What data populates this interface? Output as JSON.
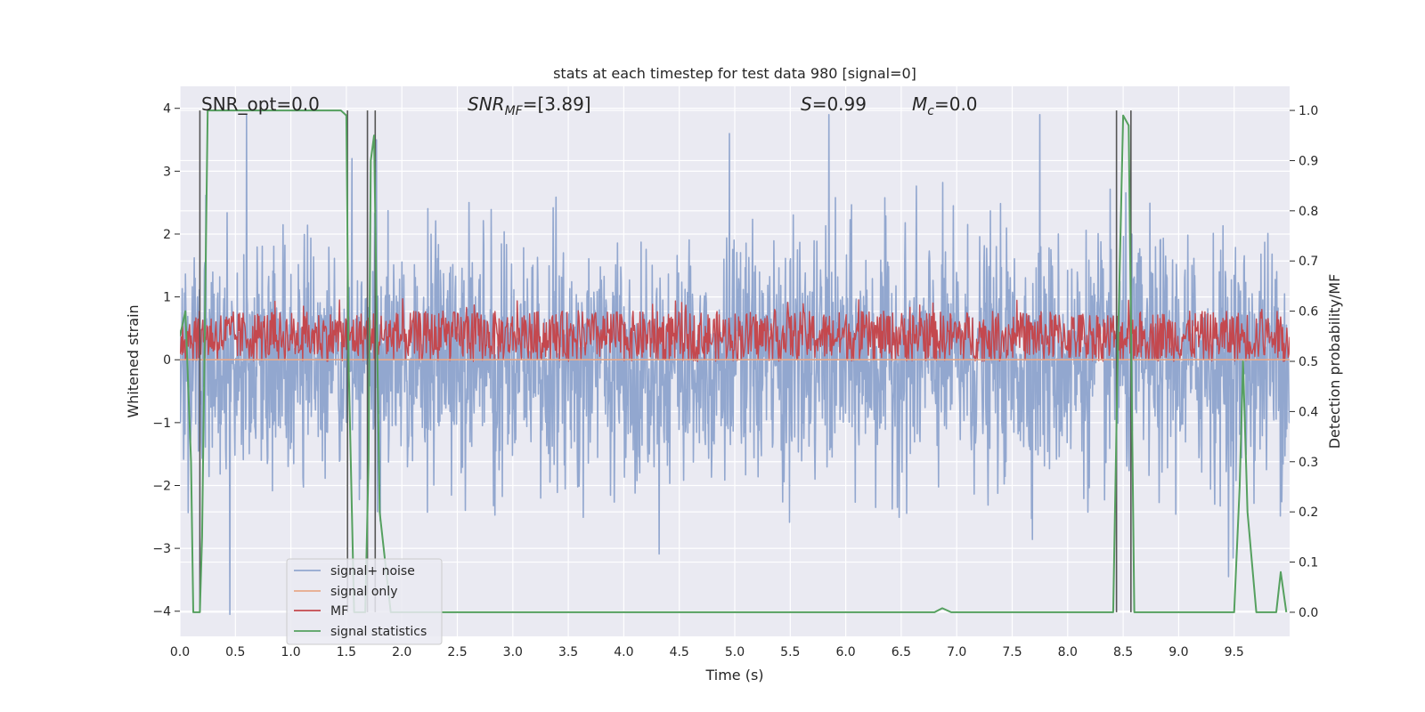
{
  "chart_data": {
    "type": "line",
    "title": "stats at each timestep for test data 980 [signal=0]",
    "xlabel": "Time (s)",
    "ylabel": "Whitened strain",
    "y2label": "Detection probability/MF",
    "xlim": [
      0.0,
      10.0
    ],
    "ylim": [
      -4.4,
      4.35
    ],
    "y2lim": [
      -0.048,
      1.048
    ],
    "x_ticks": [
      "0.0",
      "0.5",
      "1.0",
      "1.5",
      "2.0",
      "2.5",
      "3.0",
      "3.5",
      "4.0",
      "4.5",
      "5.0",
      "5.5",
      "6.0",
      "6.5",
      "7.0",
      "7.5",
      "8.0",
      "8.5",
      "9.0",
      "9.5"
    ],
    "y_ticks": [
      "4",
      "3",
      "2",
      "1",
      "0",
      "−1",
      "−2",
      "−3",
      "−4"
    ],
    "y2_ticks": [
      "1.0",
      "0.9",
      "0.8",
      "0.7",
      "0.6",
      "0.5",
      "0.4",
      "0.3",
      "0.2",
      "0.1",
      "0.0"
    ],
    "annotations": {
      "snr_opt": "SNR_opt=0.0",
      "snr_mf_name": "SNR",
      "snr_mf_sub": "MF",
      "snr_mf_value": "=[3.89]",
      "s_name": "S",
      "s_value": "=0.99",
      "mc_name": "M",
      "mc_sub": "c",
      "mc_value": "=0.0"
    },
    "legend": {
      "placement": "lower-left",
      "entries": [
        "signal+ noise",
        "signal only",
        "MF",
        "signal statistics"
      ]
    },
    "grid": true,
    "colors": {
      "signal_noise": "#92a7cf",
      "signal_only": "#e8a98a",
      "mf": "#c4484e",
      "signal_statistics": "#55a05f",
      "vlines": "#555555",
      "background": "#eaeaf2"
    },
    "series": [
      {
        "name": "signal+ noise",
        "description_kind": "dense noise",
        "envelope_y_ranges": {
          "typical_high": 1.9,
          "typical_low": -1.9,
          "max_peak": 3.9,
          "min_peak": -4.05
        },
        "selected_peaks": [
          {
            "x": 0.6,
            "y": 3.9
          },
          {
            "x": 1.55,
            "y": 3.2
          },
          {
            "x": 1.77,
            "y": 3.5
          },
          {
            "x": 4.95,
            "y": 3.6
          },
          {
            "x": 5.85,
            "y": 3.9
          },
          {
            "x": 7.75,
            "y": 3.9
          },
          {
            "x": 0.45,
            "y": -4.05
          },
          {
            "x": 9.45,
            "y": -3.45
          }
        ]
      },
      {
        "name": "signal only",
        "values_note": "zero everywhere",
        "x": [
          0.0,
          10.0
        ],
        "y": [
          0.0,
          0.0
        ]
      },
      {
        "name": "MF",
        "axis": "right",
        "band_y": [
          0.5,
          0.6
        ],
        "max_peak_y": 0.625
      },
      {
        "name": "signal statistics",
        "axis": "right",
        "x": [
          0.0,
          0.05,
          0.1,
          0.12,
          0.18,
          0.2,
          0.25,
          0.3,
          0.5,
          0.7,
          1.0,
          1.3,
          1.45,
          1.5,
          1.52,
          1.57,
          1.62,
          1.67,
          1.7,
          1.72,
          1.75,
          1.8,
          1.9,
          2.0,
          3.0,
          4.0,
          5.0,
          6.0,
          6.8,
          6.87,
          6.95,
          7.0,
          8.0,
          8.41,
          8.45,
          8.5,
          8.55,
          8.6,
          8.65,
          9.0,
          9.5,
          9.55,
          9.58,
          9.62,
          9.7,
          9.8,
          9.88,
          9.92,
          9.97
        ],
        "y": [
          0.55,
          0.6,
          0.3,
          0.0,
          0.0,
          0.15,
          1.0,
          1.0,
          1.0,
          1.0,
          1.0,
          1.0,
          1.0,
          0.99,
          0.5,
          0.0,
          0.0,
          0.0,
          0.3,
          0.9,
          0.95,
          0.2,
          0.0,
          0.0,
          0.0,
          0.0,
          0.0,
          0.0,
          0.0,
          0.008,
          0.0,
          0.0,
          0.0,
          0.0,
          0.5,
          0.99,
          0.97,
          0.0,
          0.0,
          0.0,
          0.0,
          0.25,
          0.5,
          0.2,
          0.0,
          0.0,
          0.0,
          0.08,
          0.0
        ]
      }
    ],
    "vertical_lines_x": [
      0.18,
      1.51,
      1.69,
      1.76,
      8.44,
      8.57
    ]
  }
}
